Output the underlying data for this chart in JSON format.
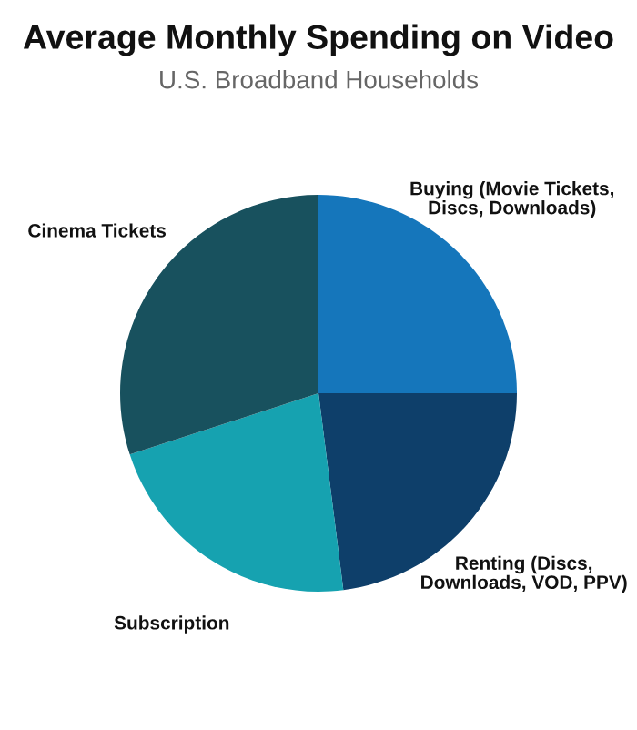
{
  "chart_data": {
    "type": "pie",
    "title": "Average Monthly Spending on Video",
    "subtitle": "U.S. Broadband Households",
    "categories": [
      "Buying (Movie Tickets, Discs, Downloads)",
      "Renting (Discs, Downloads, VOD, PPV)",
      "Subscription",
      "Cinema Tickets"
    ],
    "values": [
      25,
      23,
      22,
      30
    ],
    "colors": [
      "#1576bb",
      "#0e3f6a",
      "#16a2b0",
      "#18515e"
    ]
  }
}
